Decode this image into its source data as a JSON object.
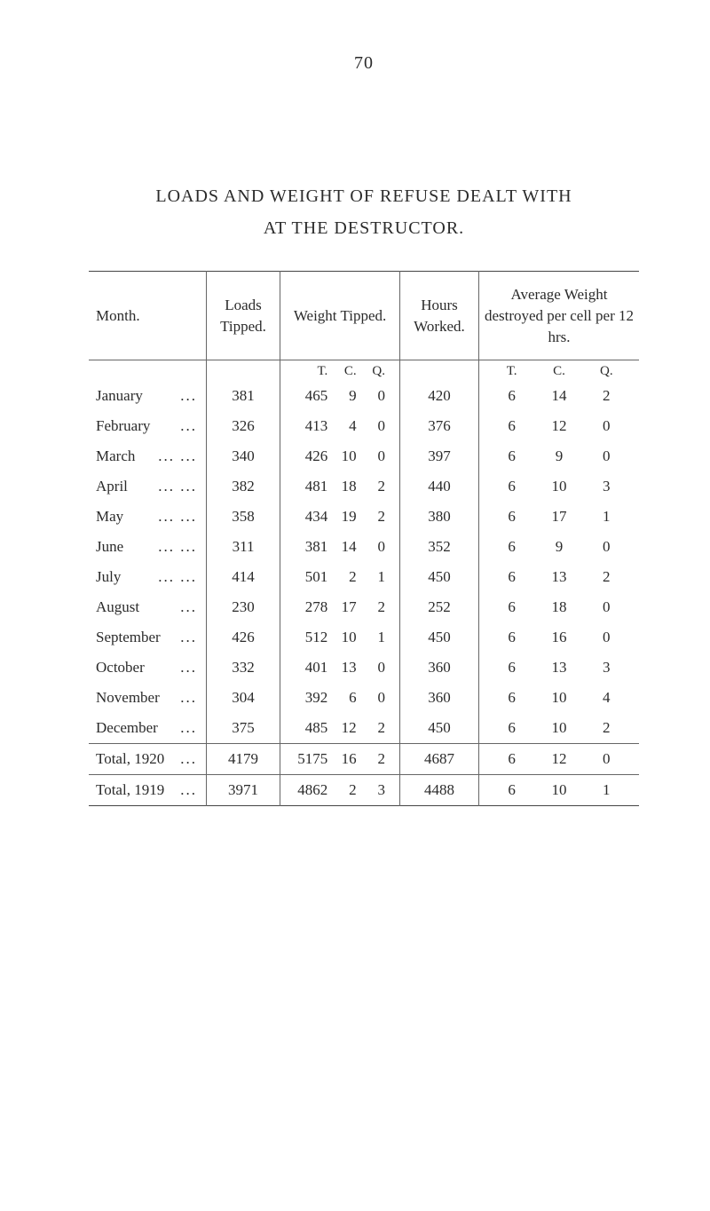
{
  "page_number": "70",
  "title_line1": "LOADS AND WEIGHT OF REFUSE DEALT WITH",
  "title_line2": "AT THE DESTRUCTOR.",
  "headers": {
    "month": "Month.",
    "loads": "Loads Tipped.",
    "weight": "Weight Tipped.",
    "hours": "Hours Worked.",
    "avg": "Average Weight destroyed per cell per 12 hrs."
  },
  "weight_units": {
    "t": "T.",
    "c": "C.",
    "q": "Q."
  },
  "avg_units": {
    "t": "T.",
    "c": "C.",
    "q": "Q."
  },
  "rows": [
    {
      "month": "January",
      "dots": "...",
      "loads": "381",
      "wt": "465",
      "wc": "9",
      "wq": "0",
      "hours": "420",
      "at": "6",
      "ac": "14",
      "aq": "2"
    },
    {
      "month": "February",
      "dots": "...",
      "loads": "326",
      "wt": "413",
      "wc": "4",
      "wq": "0",
      "hours": "376",
      "at": "6",
      "ac": "12",
      "aq": "0"
    },
    {
      "month": "March",
      "dots": "...  ...",
      "loads": "340",
      "wt": "426",
      "wc": "10",
      "wq": "0",
      "hours": "397",
      "at": "6",
      "ac": "9",
      "aq": "0"
    },
    {
      "month": "April",
      "dots": "...  ...",
      "loads": "382",
      "wt": "481",
      "wc": "18",
      "wq": "2",
      "hours": "440",
      "at": "6",
      "ac": "10",
      "aq": "3"
    },
    {
      "month": "May",
      "dots": "...  ...",
      "loads": "358",
      "wt": "434",
      "wc": "19",
      "wq": "2",
      "hours": "380",
      "at": "6",
      "ac": "17",
      "aq": "1"
    },
    {
      "month": "June",
      "dots": "...  ...",
      "loads": "311",
      "wt": "381",
      "wc": "14",
      "wq": "0",
      "hours": "352",
      "at": "6",
      "ac": "9",
      "aq": "0"
    },
    {
      "month": "July",
      "dots": "...  ...",
      "loads": "414",
      "wt": "501",
      "wc": "2",
      "wq": "1",
      "hours": "450",
      "at": "6",
      "ac": "13",
      "aq": "2"
    },
    {
      "month": "August",
      "dots": "...",
      "loads": "230",
      "wt": "278",
      "wc": "17",
      "wq": "2",
      "hours": "252",
      "at": "6",
      "ac": "18",
      "aq": "0"
    },
    {
      "month": "September",
      "dots": "...",
      "loads": "426",
      "wt": "512",
      "wc": "10",
      "wq": "1",
      "hours": "450",
      "at": "6",
      "ac": "16",
      "aq": "0"
    },
    {
      "month": "October",
      "dots": "...",
      "loads": "332",
      "wt": "401",
      "wc": "13",
      "wq": "0",
      "hours": "360",
      "at": "6",
      "ac": "13",
      "aq": "3"
    },
    {
      "month": "November",
      "dots": "...",
      "loads": "304",
      "wt": "392",
      "wc": "6",
      "wq": "0",
      "hours": "360",
      "at": "6",
      "ac": "10",
      "aq": "4"
    },
    {
      "month": "December",
      "dots": "...",
      "loads": "375",
      "wt": "485",
      "wc": "12",
      "wq": "2",
      "hours": "450",
      "at": "6",
      "ac": "10",
      "aq": "2"
    }
  ],
  "totals": [
    {
      "month": "Total, 1920",
      "dots": "...",
      "loads": "4179",
      "wt": "5175",
      "wc": "16",
      "wq": "2",
      "hours": "4687",
      "at": "6",
      "ac": "12",
      "aq": "0"
    },
    {
      "month": "Total, 1919",
      "dots": "...",
      "loads": "3971",
      "wt": "4862",
      "wc": "2",
      "wq": "3",
      "hours": "4488",
      "at": "6",
      "ac": "10",
      "aq": "1"
    }
  ]
}
